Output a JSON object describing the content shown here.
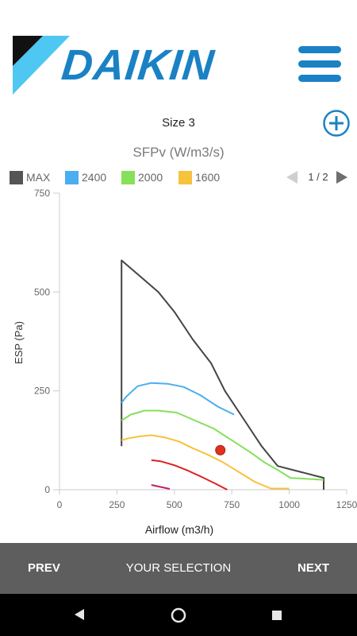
{
  "header": {
    "brand": "DAIKIN",
    "brand_color": "#1a82c4",
    "menu_icon": "hamburger-menu-icon"
  },
  "unit": {
    "title": "Size 3",
    "add_icon": "plus-circle-icon"
  },
  "pager": {
    "label": "1 / 2",
    "prev_icon": "triangle-left-icon",
    "next_icon": "triangle-right-icon"
  },
  "chart_data": {
    "type": "line",
    "title": "SFPv (W/m3/s)",
    "xlabel": "Airflow (m3/h)",
    "ylabel": "ESP (Pa)",
    "xlim": [
      0,
      1250
    ],
    "ylim": [
      0,
      750
    ],
    "xticks": [
      "0",
      "250",
      "500",
      "750",
      "1000",
      "1250"
    ],
    "yticks": [
      "0",
      "250",
      "500",
      "750"
    ],
    "grid": false,
    "legend_position": "top-left",
    "legend": [
      {
        "name": "MAX",
        "color": "#555555"
      },
      {
        "name": "2400",
        "color": "#4aaef0"
      },
      {
        "name": "2000",
        "color": "#86e05a"
      },
      {
        "name": "1600",
        "color": "#f7c23c"
      }
    ],
    "series": [
      {
        "name": "MAX",
        "color": "#444444",
        "points": [
          [
            270,
            110
          ],
          [
            270,
            580
          ],
          [
            350,
            540
          ],
          [
            430,
            500
          ],
          [
            500,
            450
          ],
          [
            580,
            380
          ],
          [
            660,
            320
          ],
          [
            720,
            250
          ],
          [
            800,
            180
          ],
          [
            880,
            110
          ],
          [
            950,
            60
          ],
          [
            1150,
            30
          ],
          [
            1150,
            0
          ]
        ]
      },
      {
        "name": "2400",
        "color": "#4aaef0",
        "points": [
          [
            270,
            220
          ],
          [
            290,
            235
          ],
          [
            340,
            262
          ],
          [
            400,
            270
          ],
          [
            470,
            268
          ],
          [
            540,
            260
          ],
          [
            610,
            240
          ],
          [
            690,
            210
          ],
          [
            760,
            190
          ]
        ]
      },
      {
        "name": "2000",
        "color": "#86e05a",
        "points": [
          [
            270,
            175
          ],
          [
            310,
            190
          ],
          [
            370,
            200
          ],
          [
            430,
            200
          ],
          [
            510,
            195
          ],
          [
            590,
            175
          ],
          [
            670,
            155
          ],
          [
            750,
            125
          ],
          [
            830,
            95
          ],
          [
            890,
            70
          ],
          [
            950,
            50
          ],
          [
            1005,
            30
          ],
          [
            1150,
            25
          ]
        ]
      },
      {
        "name": "1600",
        "color": "#f7c23c",
        "points": [
          [
            270,
            125
          ],
          [
            300,
            130
          ],
          [
            350,
            135
          ],
          [
            400,
            138
          ],
          [
            460,
            132
          ],
          [
            520,
            122
          ],
          [
            580,
            105
          ],
          [
            640,
            90
          ],
          [
            710,
            70
          ],
          [
            780,
            45
          ],
          [
            850,
            20
          ],
          [
            920,
            3
          ],
          [
            1000,
            3
          ]
        ]
      },
      {
        "name": "",
        "color": "#e02020",
        "points": [
          [
            400,
            75
          ],
          [
            440,
            72
          ],
          [
            500,
            62
          ],
          [
            560,
            48
          ],
          [
            620,
            32
          ],
          [
            680,
            15
          ],
          [
            730,
            0
          ]
        ]
      },
      {
        "name": "",
        "color": "#c0206a",
        "points": [
          [
            400,
            12
          ],
          [
            440,
            7
          ],
          [
            480,
            2
          ]
        ]
      }
    ],
    "operating_point": {
      "x": 700,
      "y": 100,
      "color": "#e03020"
    }
  },
  "footer": {
    "prev": "PREV",
    "selection": "YOUR SELECTION",
    "next": "NEXT"
  },
  "android_nav": {
    "back_icon": "back-triangle-icon",
    "home_icon": "home-circle-icon",
    "recent_icon": "recent-square-icon"
  }
}
